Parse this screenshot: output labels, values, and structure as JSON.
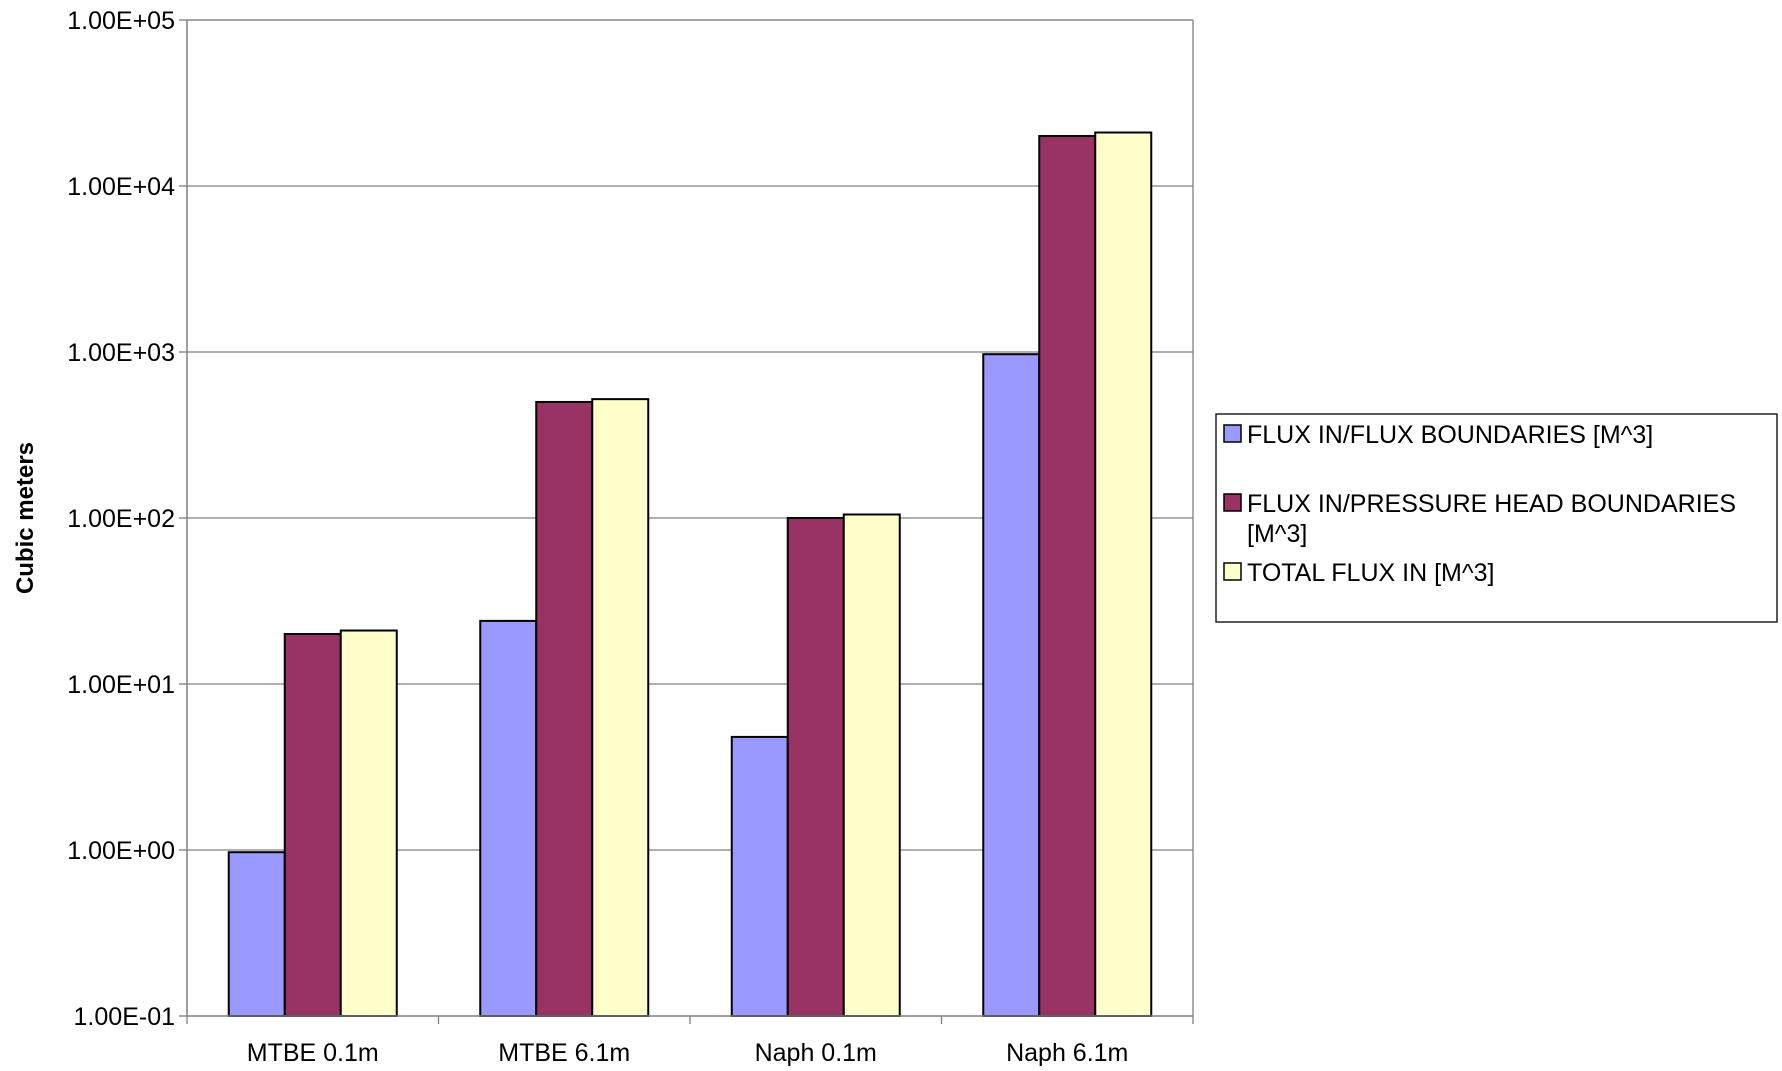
{
  "chart_data": {
    "type": "bar",
    "title": "",
    "xlabel": "",
    "ylabel": "Cubic meters",
    "yscale": "log",
    "ylim": [
      0.1,
      100000
    ],
    "ytick_values": [
      0.1,
      1,
      10,
      100,
      1000,
      10000,
      100000
    ],
    "ytick_labels": [
      "1.00E-01",
      "1.00E+00",
      "1.00E+01",
      "1.00E+02",
      "1.00E+03",
      "1.00E+04",
      "1.00E+05"
    ],
    "grid": true,
    "legend_position": "right",
    "categories": [
      "MTBE 0.1m",
      "MTBE 6.1m",
      "Naph 0.1m",
      "Naph 6.1m"
    ],
    "series": [
      {
        "name": "FLUX IN/FLUX BOUNDARIES [M^3]",
        "legend_lines": [
          "FLUX IN/FLUX BOUNDARIES [M^3]"
        ],
        "color": "#9999FF",
        "values": [
          0.97,
          24,
          4.8,
          970
        ]
      },
      {
        "name": "FLUX IN/PRESSURE HEAD BOUNDARIES [M^3]",
        "legend_lines": [
          "FLUX IN/PRESSURE HEAD BOUNDARIES",
          "[M^3]"
        ],
        "color": "#993366",
        "values": [
          20,
          500,
          100,
          20000
        ]
      },
      {
        "name": "TOTAL FLUX IN [M^3]",
        "legend_lines": [
          "TOTAL FLUX IN [M^3]"
        ],
        "color": "#FFFFCC",
        "values": [
          21,
          520,
          105,
          21000
        ]
      }
    ]
  }
}
